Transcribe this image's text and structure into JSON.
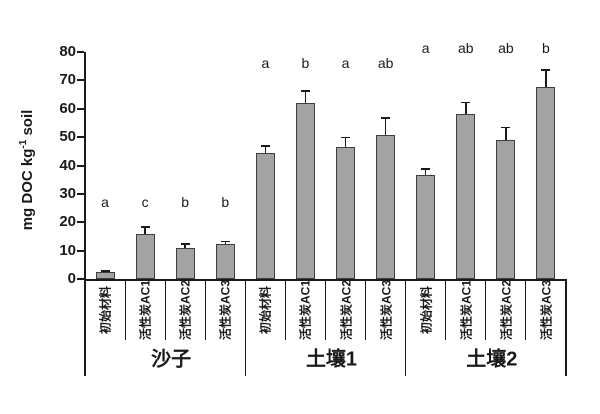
{
  "chart_data": {
    "type": "bar",
    "title": "",
    "ylabel": {
      "pre": "mg DOC kg",
      "sup": "-1",
      "post": " soil"
    },
    "ylim": [
      0,
      80
    ],
    "yticks": [
      0,
      10,
      20,
      30,
      40,
      50,
      60,
      70,
      80
    ],
    "grid": false,
    "legend": "none",
    "bar_color": "#a3a3a3",
    "bar_border_color": "#3f3f3f",
    "axis_color": "#1a1a1a",
    "error_bar_direction": "upper",
    "categories_per_group": [
      "初始材料",
      "活性炭AC1",
      "活性炭AC2",
      "活性炭AC3"
    ],
    "groups": [
      {
        "label": "沙子",
        "letter_y": 27,
        "bars": [
          {
            "category": "初始材料",
            "value": 2.3,
            "error": 0.5,
            "letter": "a"
          },
          {
            "category": "活性炭AC1",
            "value": 16,
            "error": 2.3,
            "letter": "c"
          },
          {
            "category": "活性炭AC2",
            "value": 11,
            "error": 1.3,
            "letter": "b"
          },
          {
            "category": "活性炭AC3",
            "value": 12.2,
            "error": 0.9,
            "letter": "b"
          }
        ]
      },
      {
        "label": "土壤1",
        "letter_y": 76,
        "bars": [
          {
            "category": "初始材料",
            "value": 44.3,
            "error": 2.4,
            "letter": "a"
          },
          {
            "category": "活性炭AC1",
            "value": 62,
            "error": 4.2,
            "letter": "b"
          },
          {
            "category": "活性炭AC2",
            "value": 46.5,
            "error": 3.3,
            "letter": "a"
          },
          {
            "category": "活性炭AC3",
            "value": 50.7,
            "error": 6.0,
            "letter": "ab"
          }
        ]
      },
      {
        "label": "土壤2",
        "letter_y": 81.5,
        "bars": [
          {
            "category": "初始材料",
            "value": 36.6,
            "error": 2.1,
            "letter": "a"
          },
          {
            "category": "活性炭AC1",
            "value": 58,
            "error": 4.2,
            "letter": "ab"
          },
          {
            "category": "活性炭AC2",
            "value": 49,
            "error": 4.3,
            "letter": "ab"
          },
          {
            "category": "活性炭AC3",
            "value": 67.5,
            "error": 6.0,
            "letter": "b"
          }
        ]
      }
    ]
  }
}
